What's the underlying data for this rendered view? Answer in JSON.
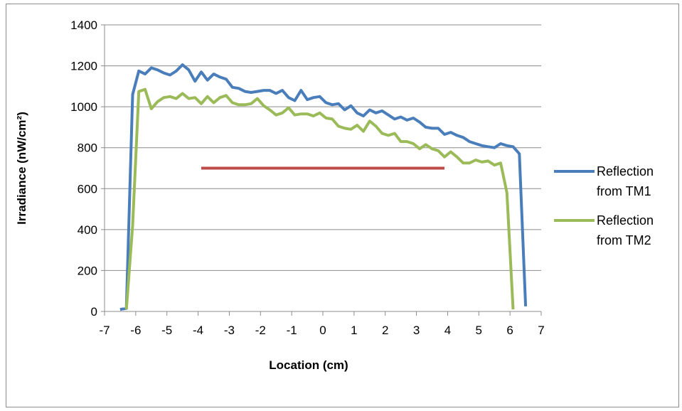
{
  "chart_data": {
    "type": "line",
    "title": "",
    "xlabel": "Location (cm)",
    "ylabel": "Irradiance (nW/cm²)",
    "xlim": [
      -7,
      7
    ],
    "ylim": [
      0,
      1400
    ],
    "x_ticks": [
      -7,
      -6,
      -5,
      -4,
      -3,
      -2,
      -1,
      0,
      1,
      2,
      3,
      4,
      5,
      6,
      7
    ],
    "y_ticks": [
      0,
      200,
      400,
      600,
      800,
      1000,
      1200,
      1400
    ],
    "grid": "horizontal",
    "legend_position": "right",
    "series": [
      {
        "name": "Reflection from TM1",
        "legend_lines": [
          "Reflection",
          "from TM1"
        ],
        "color": "#4a7ebb",
        "x": [
          -6.5,
          -6.3,
          -6.1,
          -5.9,
          -5.7,
          -5.5,
          -5.3,
          -5.1,
          -4.9,
          -4.7,
          -4.5,
          -4.3,
          -4.1,
          -3.9,
          -3.7,
          -3.5,
          -3.3,
          -3.1,
          -2.9,
          -2.7,
          -2.5,
          -2.3,
          -2.1,
          -1.9,
          -1.7,
          -1.5,
          -1.3,
          -1.1,
          -0.9,
          -0.7,
          -0.5,
          -0.3,
          -0.1,
          0.1,
          0.3,
          0.5,
          0.7,
          0.9,
          1.1,
          1.3,
          1.5,
          1.7,
          1.9,
          2.1,
          2.3,
          2.5,
          2.7,
          2.9,
          3.1,
          3.3,
          3.5,
          3.7,
          3.9,
          4.1,
          4.3,
          4.5,
          4.7,
          4.9,
          5.1,
          5.3,
          5.5,
          5.7,
          5.9,
          6.1,
          6.3,
          6.5
        ],
        "values": [
          10,
          15,
          1060,
          1175,
          1160,
          1190,
          1180,
          1165,
          1155,
          1175,
          1205,
          1180,
          1125,
          1170,
          1130,
          1160,
          1145,
          1135,
          1095,
          1090,
          1075,
          1070,
          1075,
          1080,
          1080,
          1065,
          1080,
          1045,
          1030,
          1080,
          1035,
          1045,
          1050,
          1020,
          1010,
          1015,
          985,
          1005,
          970,
          955,
          985,
          970,
          980,
          960,
          940,
          950,
          935,
          945,
          925,
          900,
          895,
          895,
          865,
          875,
          860,
          850,
          830,
          820,
          810,
          805,
          800,
          820,
          810,
          805,
          770,
          25
        ]
      },
      {
        "name": "Reflection from TM2",
        "legend_lines": [
          "Reflection",
          "from TM2"
        ],
        "color": "#9bbb59",
        "x": [
          -6.3,
          -6.1,
          -5.9,
          -5.7,
          -5.5,
          -5.3,
          -5.1,
          -4.9,
          -4.7,
          -4.5,
          -4.3,
          -4.1,
          -3.9,
          -3.7,
          -3.5,
          -3.3,
          -3.1,
          -2.9,
          -2.7,
          -2.5,
          -2.3,
          -2.1,
          -1.9,
          -1.7,
          -1.5,
          -1.3,
          -1.1,
          -0.9,
          -0.7,
          -0.5,
          -0.3,
          -0.1,
          0.1,
          0.3,
          0.5,
          0.7,
          0.9,
          1.1,
          1.3,
          1.5,
          1.7,
          1.9,
          2.1,
          2.3,
          2.5,
          2.7,
          2.9,
          3.1,
          3.3,
          3.5,
          3.7,
          3.9,
          4.1,
          4.3,
          4.5,
          4.7,
          4.9,
          5.1,
          5.3,
          5.5,
          5.7,
          5.9,
          6.1
        ],
        "values": [
          10,
          420,
          1075,
          1085,
          990,
          1025,
          1045,
          1050,
          1040,
          1065,
          1040,
          1045,
          1015,
          1050,
          1020,
          1045,
          1055,
          1020,
          1010,
          1010,
          1015,
          1040,
          1005,
          985,
          960,
          970,
          995,
          960,
          965,
          965,
          955,
          970,
          945,
          940,
          905,
          895,
          890,
          910,
          880,
          930,
          905,
          870,
          860,
          870,
          830,
          830,
          820,
          795,
          815,
          795,
          785,
          755,
          780,
          755,
          725,
          725,
          740,
          730,
          735,
          715,
          725,
          580,
          10
        ]
      },
      {
        "name": "",
        "color": "#be4b48",
        "x": [
          -3.9,
          3.9
        ],
        "values": [
          700,
          700
        ]
      }
    ]
  }
}
